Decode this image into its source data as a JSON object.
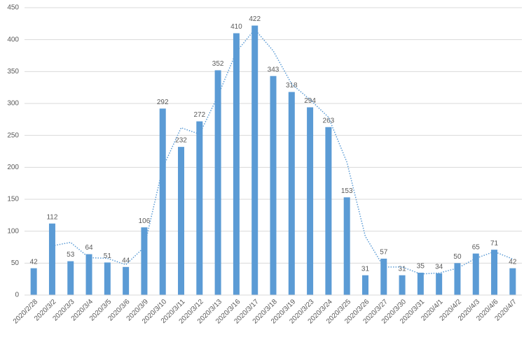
{
  "chart_data": {
    "type": "bar",
    "categories": [
      "2020/2/28",
      "2020/3/2",
      "2020/3/3",
      "2020/3/4",
      "2020/3/5",
      "2020/3/6",
      "2020/3/9",
      "2020/3/10",
      "2020/3/11",
      "2020/3/12",
      "2020/3/13",
      "2020/3/16",
      "2020/3/17",
      "2020/3/18",
      "2020/3/19",
      "2020/3/23",
      "2020/3/24",
      "2020/3/25",
      "2020/3/26",
      "2020/3/27",
      "2020/3/30",
      "2020/3/31",
      "2020/4/1",
      "2020/4/2",
      "2020/4/3",
      "2020/4/6",
      "2020/4/7"
    ],
    "values": [
      42,
      112,
      53,
      64,
      51,
      44,
      106,
      292,
      232,
      272,
      352,
      410,
      422,
      343,
      318,
      294,
      263,
      153,
      31,
      57,
      31,
      35,
      34,
      50,
      65,
      71,
      42
    ],
    "color": "#5b9bd5",
    "trendline": {
      "values": [
        null,
        77,
        82.5,
        58.5,
        57.5,
        47.5,
        75,
        199,
        262,
        252,
        312,
        381,
        416,
        382.5,
        330.5,
        306,
        278.5,
        208,
        92,
        44,
        44,
        33,
        34.5,
        42,
        57.5,
        68,
        56.5
      ],
      "color": "#5b9bd5",
      "style": "dotted"
    },
    "ylim": [
      0,
      450
    ],
    "yticks": [
      0,
      50,
      100,
      150,
      200,
      250,
      300,
      350,
      400,
      450
    ],
    "grid": true
  }
}
